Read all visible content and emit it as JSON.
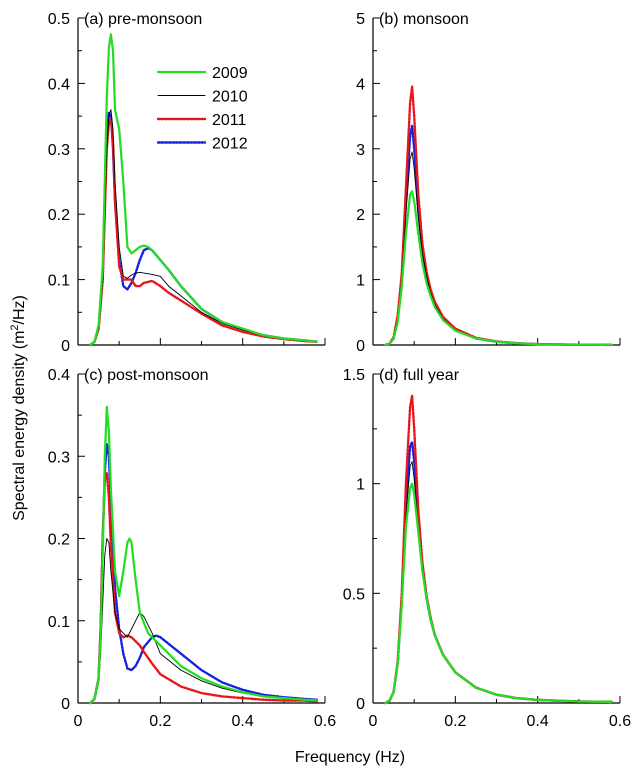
{
  "figure": {
    "ylabel_main": "Spectral energy density (m",
    "ylabel_sup": "2",
    "ylabel_tail": "/Hz)",
    "xlabel": "Frequency (Hz)"
  },
  "series_styles": {
    "2009": {
      "color": "#22dd22",
      "dash": "",
      "width": 2.2
    },
    "2010": {
      "color": "#000000",
      "dash": "",
      "width": 0.9
    },
    "2011": {
      "color": "#e8161b",
      "dash": "2,1.6",
      "width": 2.4
    },
    "2012": {
      "color": "#1522e0",
      "dash": "2,1.6",
      "width": 2.4
    }
  },
  "legend": {
    "entries": [
      "2009",
      "2010",
      "2011",
      "2012"
    ]
  },
  "chart_data": [
    {
      "type": "line",
      "title": "(a) pre-monsoon",
      "xlim": [
        0,
        0.6
      ],
      "ylim": [
        0,
        0.5
      ],
      "xticks": [
        0,
        0.2,
        0.4,
        0.6
      ],
      "xtick_labels": [
        "",
        "",
        "",
        ""
      ],
      "yticks": [
        0,
        0.1,
        0.2,
        0.3,
        0.4,
        0.5
      ],
      "ytick_labels": [
        "0",
        "0.1",
        "0.2",
        "0.3",
        "0.4",
        "0.5"
      ],
      "series": [
        {
          "name": "2009",
          "x": [
            0.03,
            0.04,
            0.05,
            0.06,
            0.07,
            0.075,
            0.08,
            0.085,
            0.09,
            0.1,
            0.11,
            0.12,
            0.13,
            0.14,
            0.15,
            0.16,
            0.17,
            0.18,
            0.2,
            0.22,
            0.25,
            0.3,
            0.35,
            0.4,
            0.45,
            0.5,
            0.55,
            0.58
          ],
          "y": [
            0,
            0.005,
            0.03,
            0.12,
            0.38,
            0.455,
            0.475,
            0.45,
            0.36,
            0.33,
            0.25,
            0.15,
            0.14,
            0.145,
            0.15,
            0.152,
            0.15,
            0.145,
            0.13,
            0.115,
            0.09,
            0.055,
            0.035,
            0.025,
            0.015,
            0.01,
            0.007,
            0.005
          ]
        },
        {
          "name": "2010",
          "x": [
            0.03,
            0.04,
            0.05,
            0.06,
            0.07,
            0.075,
            0.08,
            0.085,
            0.09,
            0.1,
            0.11,
            0.12,
            0.13,
            0.14,
            0.15,
            0.16,
            0.18,
            0.2,
            0.22,
            0.25,
            0.3,
            0.35,
            0.4,
            0.45,
            0.5,
            0.55,
            0.58
          ],
          "y": [
            0,
            0.005,
            0.025,
            0.1,
            0.3,
            0.35,
            0.36,
            0.33,
            0.25,
            0.15,
            0.105,
            0.102,
            0.107,
            0.11,
            0.111,
            0.11,
            0.108,
            0.105,
            0.09,
            0.075,
            0.05,
            0.033,
            0.023,
            0.015,
            0.01,
            0.007,
            0.005
          ]
        },
        {
          "name": "2011",
          "x": [
            0.03,
            0.04,
            0.05,
            0.06,
            0.07,
            0.075,
            0.08,
            0.085,
            0.09,
            0.1,
            0.11,
            0.12,
            0.13,
            0.14,
            0.15,
            0.16,
            0.18,
            0.2,
            0.22,
            0.25,
            0.3,
            0.35,
            0.4,
            0.45,
            0.5,
            0.55,
            0.58
          ],
          "y": [
            0,
            0.005,
            0.025,
            0.1,
            0.3,
            0.34,
            0.345,
            0.31,
            0.22,
            0.12,
            0.1,
            0.1,
            0.1,
            0.09,
            0.09,
            0.095,
            0.098,
            0.09,
            0.08,
            0.068,
            0.048,
            0.03,
            0.02,
            0.013,
            0.009,
            0.006,
            0.005
          ]
        },
        {
          "name": "2012",
          "x": [
            0.03,
            0.04,
            0.05,
            0.06,
            0.07,
            0.075,
            0.08,
            0.085,
            0.09,
            0.1,
            0.11,
            0.12,
            0.13,
            0.14,
            0.15,
            0.16,
            0.17,
            0.18,
            0.2,
            0.22,
            0.25,
            0.3,
            0.35,
            0.4,
            0.45,
            0.5,
            0.55,
            0.58
          ],
          "y": [
            0,
            0.005,
            0.025,
            0.1,
            0.32,
            0.355,
            0.35,
            0.3,
            0.22,
            0.13,
            0.09,
            0.085,
            0.095,
            0.11,
            0.13,
            0.145,
            0.148,
            0.145,
            0.13,
            0.115,
            0.09,
            0.055,
            0.035,
            0.024,
            0.015,
            0.01,
            0.007,
            0.005
          ]
        }
      ]
    },
    {
      "type": "line",
      "title": "(b) monsoon",
      "xlim": [
        0,
        0.6
      ],
      "ylim": [
        0,
        5
      ],
      "xticks": [
        0,
        0.2,
        0.4,
        0.6
      ],
      "xtick_labels": [
        "",
        "",
        "",
        ""
      ],
      "yticks": [
        0,
        1,
        2,
        3,
        4,
        5
      ],
      "ytick_labels": [
        "0",
        "1",
        "2",
        "3",
        "4",
        "5"
      ],
      "series": [
        {
          "name": "2009",
          "x": [
            0.03,
            0.04,
            0.05,
            0.06,
            0.07,
            0.08,
            0.09,
            0.095,
            0.1,
            0.11,
            0.12,
            0.13,
            0.14,
            0.15,
            0.17,
            0.2,
            0.25,
            0.3,
            0.35,
            0.4,
            0.5,
            0.58
          ],
          "y": [
            0,
            0.02,
            0.1,
            0.35,
            0.9,
            1.7,
            2.3,
            2.35,
            2.2,
            1.7,
            1.25,
            0.95,
            0.75,
            0.58,
            0.38,
            0.22,
            0.1,
            0.05,
            0.025,
            0.012,
            0.004,
            0.002
          ]
        },
        {
          "name": "2010",
          "x": [
            0.03,
            0.04,
            0.05,
            0.06,
            0.07,
            0.08,
            0.09,
            0.095,
            0.1,
            0.11,
            0.12,
            0.13,
            0.14,
            0.15,
            0.17,
            0.2,
            0.25,
            0.3,
            0.35,
            0.4,
            0.5,
            0.58
          ],
          "y": [
            0,
            0.02,
            0.12,
            0.4,
            1.0,
            2.0,
            2.85,
            2.95,
            2.7,
            1.95,
            1.4,
            1.05,
            0.8,
            0.62,
            0.4,
            0.23,
            0.1,
            0.05,
            0.025,
            0.012,
            0.004,
            0.002
          ]
        },
        {
          "name": "2011",
          "x": [
            0.03,
            0.04,
            0.05,
            0.06,
            0.07,
            0.08,
            0.09,
            0.095,
            0.1,
            0.11,
            0.12,
            0.13,
            0.14,
            0.15,
            0.17,
            0.2,
            0.25,
            0.3,
            0.35,
            0.4,
            0.5,
            0.58
          ],
          "y": [
            0,
            0.02,
            0.12,
            0.45,
            1.1,
            2.4,
            3.7,
            3.95,
            3.5,
            2.3,
            1.55,
            1.12,
            0.85,
            0.66,
            0.43,
            0.25,
            0.11,
            0.055,
            0.028,
            0.013,
            0.004,
            0.002
          ]
        },
        {
          "name": "2012",
          "x": [
            0.03,
            0.04,
            0.05,
            0.06,
            0.07,
            0.08,
            0.09,
            0.095,
            0.1,
            0.11,
            0.12,
            0.13,
            0.14,
            0.15,
            0.17,
            0.2,
            0.25,
            0.3,
            0.35,
            0.4,
            0.5,
            0.58
          ],
          "y": [
            0,
            0.02,
            0.1,
            0.4,
            1.0,
            2.2,
            3.2,
            3.35,
            3.0,
            2.05,
            1.45,
            1.08,
            0.82,
            0.63,
            0.41,
            0.24,
            0.1,
            0.05,
            0.025,
            0.012,
            0.004,
            0.002
          ]
        }
      ]
    },
    {
      "type": "line",
      "title": "(c) post-monsoon",
      "xlim": [
        0,
        0.6
      ],
      "ylim": [
        0,
        0.4
      ],
      "xticks": [
        0,
        0.2,
        0.4,
        0.6
      ],
      "xtick_labels": [
        "0",
        "0.2",
        "0.4",
        "0.6"
      ],
      "yticks": [
        0,
        0.1,
        0.2,
        0.3,
        0.4
      ],
      "ytick_labels": [
        "0",
        "0.1",
        "0.2",
        "0.3",
        "0.4"
      ],
      "series": [
        {
          "name": "2009",
          "x": [
            0.03,
            0.04,
            0.05,
            0.055,
            0.06,
            0.065,
            0.07,
            0.075,
            0.08,
            0.09,
            0.1,
            0.11,
            0.12,
            0.125,
            0.13,
            0.14,
            0.15,
            0.17,
            0.2,
            0.25,
            0.3,
            0.35,
            0.4,
            0.45,
            0.5,
            0.55,
            0.58
          ],
          "y": [
            0,
            0.005,
            0.03,
            0.08,
            0.18,
            0.3,
            0.36,
            0.33,
            0.26,
            0.16,
            0.13,
            0.16,
            0.195,
            0.2,
            0.195,
            0.15,
            0.11,
            0.085,
            0.07,
            0.045,
            0.03,
            0.02,
            0.013,
            0.008,
            0.006,
            0.004,
            0.003
          ]
        },
        {
          "name": "2010",
          "x": [
            0.03,
            0.04,
            0.05,
            0.055,
            0.06,
            0.065,
            0.07,
            0.075,
            0.08,
            0.09,
            0.1,
            0.11,
            0.12,
            0.13,
            0.14,
            0.15,
            0.16,
            0.18,
            0.2,
            0.25,
            0.3,
            0.35,
            0.4,
            0.45,
            0.5,
            0.55,
            0.58
          ],
          "y": [
            0,
            0.005,
            0.025,
            0.06,
            0.12,
            0.18,
            0.2,
            0.195,
            0.16,
            0.11,
            0.09,
            0.085,
            0.08,
            0.09,
            0.1,
            0.11,
            0.105,
            0.085,
            0.06,
            0.04,
            0.027,
            0.018,
            0.012,
            0.008,
            0.006,
            0.004,
            0.003
          ]
        },
        {
          "name": "2011",
          "x": [
            0.03,
            0.04,
            0.05,
            0.055,
            0.06,
            0.065,
            0.07,
            0.075,
            0.08,
            0.09,
            0.1,
            0.11,
            0.12,
            0.13,
            0.14,
            0.15,
            0.16,
            0.18,
            0.2,
            0.25,
            0.3,
            0.35,
            0.4,
            0.45,
            0.5,
            0.55,
            0.58
          ],
          "y": [
            0,
            0.005,
            0.03,
            0.09,
            0.2,
            0.27,
            0.28,
            0.25,
            0.19,
            0.11,
            0.085,
            0.08,
            0.082,
            0.08,
            0.075,
            0.07,
            0.062,
            0.048,
            0.035,
            0.02,
            0.012,
            0.008,
            0.006,
            0.004,
            0.003,
            0.003,
            0.002
          ]
        },
        {
          "name": "2012",
          "x": [
            0.03,
            0.04,
            0.05,
            0.055,
            0.06,
            0.065,
            0.07,
            0.075,
            0.08,
            0.09,
            0.1,
            0.11,
            0.12,
            0.13,
            0.14,
            0.15,
            0.16,
            0.18,
            0.19,
            0.2,
            0.22,
            0.25,
            0.3,
            0.35,
            0.4,
            0.45,
            0.5,
            0.55,
            0.58
          ],
          "y": [
            0,
            0.005,
            0.03,
            0.09,
            0.2,
            0.28,
            0.315,
            0.3,
            0.24,
            0.14,
            0.09,
            0.06,
            0.042,
            0.04,
            0.045,
            0.055,
            0.068,
            0.08,
            0.082,
            0.08,
            0.072,
            0.06,
            0.04,
            0.025,
            0.016,
            0.01,
            0.007,
            0.005,
            0.004
          ]
        }
      ]
    },
    {
      "type": "line",
      "title": "(d) full year",
      "xlim": [
        0,
        0.6
      ],
      "ylim": [
        0,
        1.5
      ],
      "xticks": [
        0,
        0.2,
        0.4,
        0.6
      ],
      "xtick_labels": [
        "0",
        "0.2",
        "0.4",
        "0.6"
      ],
      "yticks": [
        0,
        0.5,
        1,
        1.5
      ],
      "ytick_labels": [
        "0",
        "0.5",
        "1",
        "1.5"
      ],
      "series": [
        {
          "name": "2009",
          "x": [
            0.03,
            0.04,
            0.05,
            0.06,
            0.07,
            0.08,
            0.09,
            0.095,
            0.1,
            0.11,
            0.12,
            0.13,
            0.14,
            0.15,
            0.17,
            0.2,
            0.25,
            0.3,
            0.35,
            0.4,
            0.5,
            0.58
          ],
          "y": [
            0,
            0.01,
            0.05,
            0.18,
            0.45,
            0.8,
            0.98,
            1.0,
            0.95,
            0.78,
            0.6,
            0.48,
            0.38,
            0.31,
            0.22,
            0.14,
            0.07,
            0.038,
            0.022,
            0.014,
            0.007,
            0.005
          ]
        },
        {
          "name": "2010",
          "x": [
            0.03,
            0.04,
            0.05,
            0.06,
            0.07,
            0.08,
            0.09,
            0.095,
            0.1,
            0.11,
            0.12,
            0.13,
            0.14,
            0.15,
            0.17,
            0.2,
            0.25,
            0.3,
            0.35,
            0.4,
            0.5,
            0.58
          ],
          "y": [
            0,
            0.01,
            0.05,
            0.18,
            0.45,
            0.85,
            1.08,
            1.1,
            1.02,
            0.8,
            0.61,
            0.48,
            0.38,
            0.31,
            0.22,
            0.14,
            0.07,
            0.038,
            0.022,
            0.014,
            0.007,
            0.005
          ]
        },
        {
          "name": "2011",
          "x": [
            0.03,
            0.04,
            0.05,
            0.06,
            0.07,
            0.08,
            0.09,
            0.095,
            0.1,
            0.11,
            0.12,
            0.13,
            0.14,
            0.15,
            0.17,
            0.2,
            0.25,
            0.3,
            0.35,
            0.4,
            0.5,
            0.58
          ],
          "y": [
            0,
            0.01,
            0.05,
            0.19,
            0.5,
            1.0,
            1.35,
            1.4,
            1.25,
            0.88,
            0.64,
            0.49,
            0.39,
            0.31,
            0.22,
            0.14,
            0.07,
            0.038,
            0.022,
            0.014,
            0.007,
            0.005
          ]
        },
        {
          "name": "2012",
          "x": [
            0.03,
            0.04,
            0.05,
            0.06,
            0.07,
            0.08,
            0.09,
            0.095,
            0.1,
            0.11,
            0.12,
            0.13,
            0.14,
            0.15,
            0.17,
            0.2,
            0.25,
            0.3,
            0.35,
            0.4,
            0.5,
            0.58
          ],
          "y": [
            0,
            0.01,
            0.05,
            0.18,
            0.47,
            0.92,
            1.17,
            1.19,
            1.1,
            0.83,
            0.62,
            0.48,
            0.38,
            0.31,
            0.22,
            0.14,
            0.07,
            0.038,
            0.022,
            0.014,
            0.007,
            0.005
          ]
        }
      ]
    }
  ]
}
